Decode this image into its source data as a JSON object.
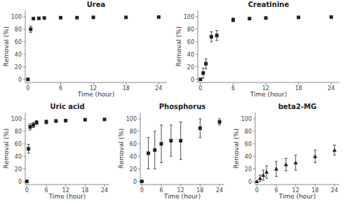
{
  "chart_data": [
    {
      "type": "scatter",
      "title": "Urea",
      "xlabel": "Time (hour)",
      "ylabel": "Removal (%)",
      "x": [
        0,
        0.5,
        1,
        2,
        3,
        6,
        9,
        12,
        18,
        24
      ],
      "values": [
        0,
        80,
        97,
        97.5,
        98,
        98.5,
        98.5,
        99,
        99,
        99.5
      ],
      "yerr": [
        0,
        5,
        2,
        1.5,
        1,
        1,
        1,
        0.5,
        0.5,
        0.3
      ],
      "marker": "square",
      "color": "#222222",
      "xlim": [
        -0.5,
        25.5
      ],
      "xticks": [
        0,
        6,
        12,
        18,
        24
      ],
      "ylim": [
        -5,
        110
      ],
      "yticks": [
        0,
        20,
        40,
        60,
        80,
        100
      ]
    },
    {
      "type": "scatter",
      "title": "Creatinine",
      "xlabel": "Time (hour)",
      "ylabel": "Removal (%)",
      "x": [
        0,
        0.5,
        1,
        2,
        3,
        6,
        9,
        12,
        18,
        24
      ],
      "values": [
        0,
        10,
        25,
        68,
        70,
        95,
        97,
        98,
        99,
        99.5
      ],
      "yerr": [
        0,
        8,
        8,
        8,
        8,
        3,
        2,
        1.5,
        1,
        0.5
      ],
      "marker": "square",
      "color": "#222222",
      "xlim": [
        -0.5,
        25.5
      ],
      "xticks": [
        0,
        6,
        12,
        18,
        24
      ],
      "ylim": [
        -5,
        110
      ],
      "yticks": [
        0,
        20,
        40,
        60,
        80,
        100
      ]
    },
    {
      "type": "scatter",
      "title": "Uric acid",
      "xlabel": "Time (hour)",
      "ylabel": "Removal (%)",
      "x": [
        0,
        0.5,
        1,
        2,
        3,
        6,
        9,
        12,
        18,
        24
      ],
      "values": [
        0,
        52,
        87,
        90,
        94,
        95,
        96.5,
        97,
        98.5,
        99
      ],
      "yerr": [
        0,
        7,
        5,
        4,
        3,
        3,
        2,
        2,
        1,
        0.5
      ],
      "marker": "square",
      "color": "#222222",
      "xlim": [
        -0.5,
        25.5
      ],
      "xticks": [
        0,
        6,
        12,
        18,
        24
      ],
      "ylim": [
        -5,
        110
      ],
      "yticks": [
        0,
        20,
        40,
        60,
        80,
        100
      ]
    },
    {
      "type": "scatter",
      "title": "Phosphorus",
      "xlabel": "Time (hour)",
      "ylabel": "Removal (%)",
      "x": [
        0,
        2,
        4,
        6,
        9,
        12,
        18,
        24
      ],
      "values": [
        0,
        45,
        50,
        60,
        65,
        65,
        85,
        95
      ],
      "yerr": [
        0,
        25,
        30,
        30,
        25,
        30,
        15,
        5
      ],
      "marker": "square",
      "color": "#222222",
      "xlim": [
        -0.5,
        25.5
      ],
      "xticks": [
        0,
        6,
        12,
        18,
        24
      ],
      "ylim": [
        -5,
        110
      ],
      "yticks": [
        0,
        20,
        40,
        60,
        80,
        100
      ]
    },
    {
      "type": "scatter",
      "title": "beta2-MG",
      "xlabel": "Time (hour)",
      "ylabel": "Removal (%)",
      "x": [
        0,
        1,
        2,
        3,
        6,
        9,
        12,
        18,
        24
      ],
      "values": [
        0,
        5,
        10,
        15,
        20,
        27,
        30,
        40,
        50
      ],
      "yerr": [
        0,
        5,
        8,
        10,
        12,
        10,
        12,
        10,
        8
      ],
      "marker": "triangle",
      "color": "#222222",
      "xlim": [
        -0.5,
        25.5
      ],
      "xticks": [
        0,
        6,
        12,
        18,
        24
      ],
      "ylim": [
        -5,
        110
      ],
      "yticks": [
        0,
        20,
        40,
        60,
        80,
        100
      ]
    }
  ]
}
